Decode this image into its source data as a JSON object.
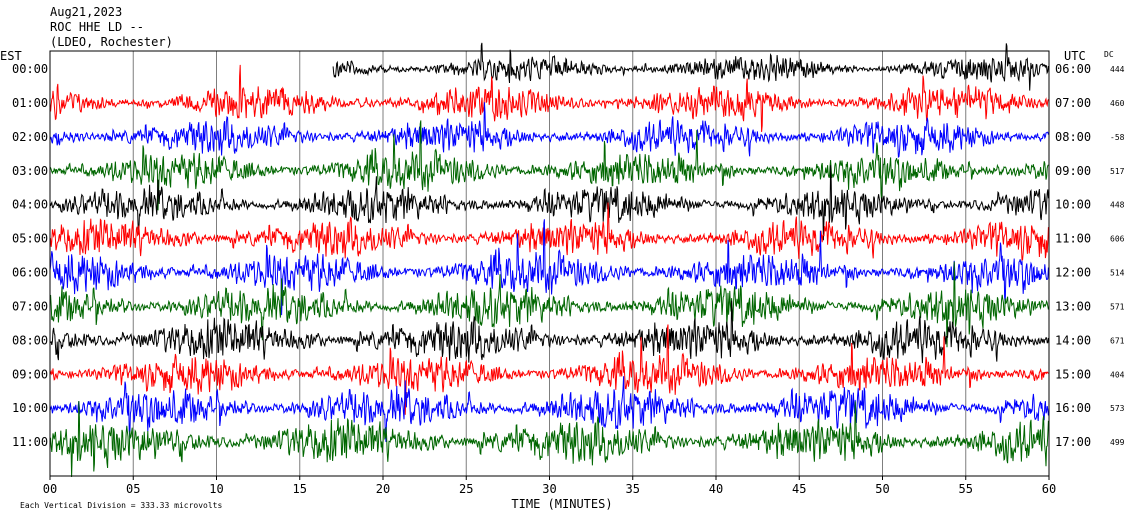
{
  "header": {
    "date": "Aug21,2023",
    "station": "ROC HHE LD --",
    "network": "(LDEO, Rochester)"
  },
  "chart_data": {
    "type": "line",
    "title": "",
    "left_axis_label": "EST",
    "right_axis_label": "UTC",
    "dc_label": "DC",
    "xlabel": "TIME (MINUTES)",
    "x_ticks": [
      "00",
      "05",
      "10",
      "15",
      "20",
      "25",
      "30",
      "35",
      "40",
      "45",
      "50",
      "55",
      "60"
    ],
    "xlim": [
      0,
      60
    ],
    "grid": true,
    "footer": "Each Vertical Division = 333.33 microvolts",
    "series_colors": [
      "#000000",
      "#ff0000",
      "#0000ff",
      "#006600"
    ],
    "rows": [
      {
        "est": "00:00",
        "utc": "06:00",
        "dc": "444",
        "color": "#000000",
        "start_min": 17,
        "amp": 0.55
      },
      {
        "est": "01:00",
        "utc": "07:00",
        "dc": "460",
        "color": "#ff0000",
        "start_min": 0,
        "amp": 0.7
      },
      {
        "est": "02:00",
        "utc": "08:00",
        "dc": "-58",
        "color": "#0000ff",
        "start_min": 0,
        "amp": 0.75
      },
      {
        "est": "03:00",
        "utc": "09:00",
        "dc": "517",
        "color": "#006600",
        "start_min": 0,
        "amp": 0.8
      },
      {
        "est": "04:00",
        "utc": "10:00",
        "dc": "448",
        "color": "#000000",
        "start_min": 0,
        "amp": 0.75
      },
      {
        "est": "05:00",
        "utc": "11:00",
        "dc": "606",
        "color": "#ff0000",
        "start_min": 0,
        "amp": 0.8
      },
      {
        "est": "06:00",
        "utc": "12:00",
        "dc": "514",
        "color": "#0000ff",
        "start_min": 0,
        "amp": 0.85
      },
      {
        "est": "07:00",
        "utc": "13:00",
        "dc": "571",
        "color": "#006600",
        "start_min": 0,
        "amp": 0.85
      },
      {
        "est": "08:00",
        "utc": "14:00",
        "dc": "671",
        "color": "#000000",
        "start_min": 0,
        "amp": 0.9
      },
      {
        "est": "09:00",
        "utc": "15:00",
        "dc": "404",
        "color": "#ff0000",
        "start_min": 0,
        "amp": 0.8
      },
      {
        "est": "10:00",
        "utc": "16:00",
        "dc": "573",
        "color": "#0000ff",
        "start_min": 0,
        "amp": 0.85
      },
      {
        "est": "11:00",
        "utc": "17:00",
        "dc": "499",
        "color": "#006600",
        "start_min": 0,
        "amp": 0.95
      }
    ]
  }
}
